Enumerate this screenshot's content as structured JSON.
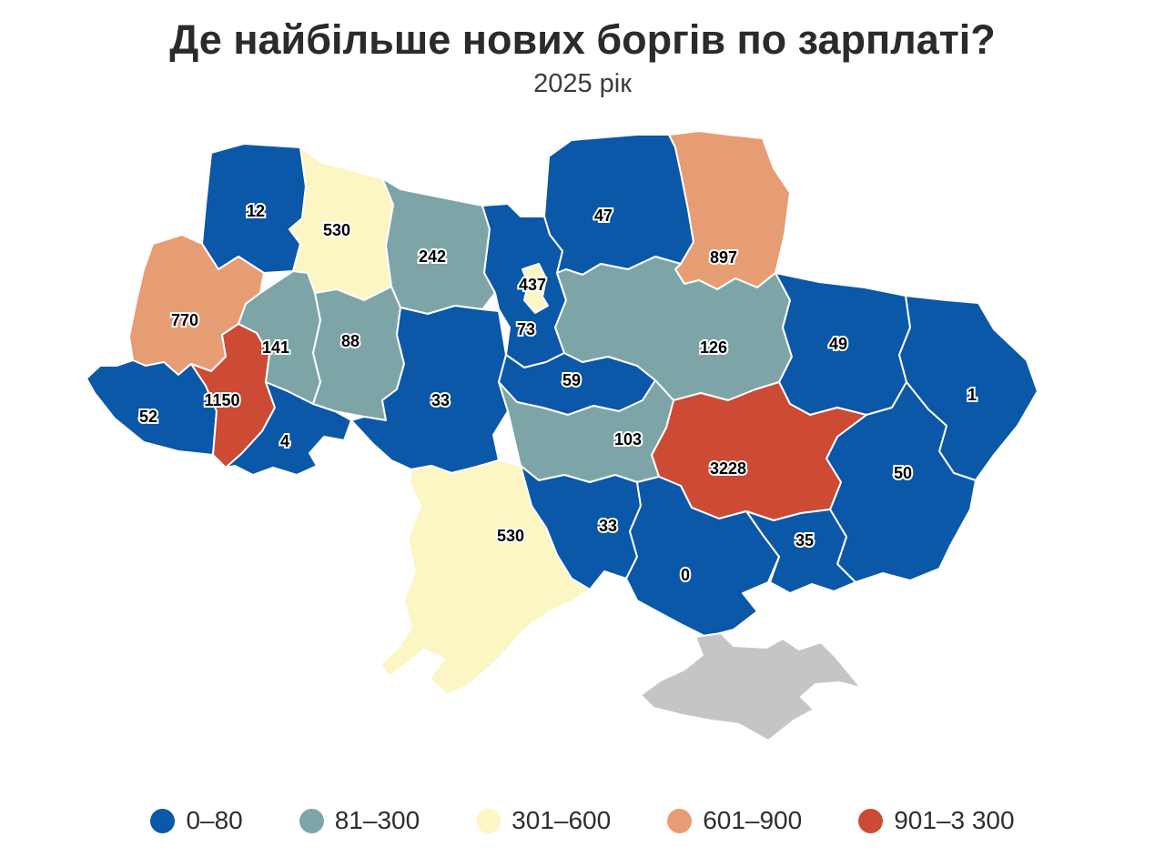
{
  "title": "Де найбільше нових боргів по зарплаті?",
  "subtitle": "2025 рік",
  "legend": [
    {
      "label": "0–80",
      "color": "#0b57a8"
    },
    {
      "label": "81–300",
      "color": "#7da5a8"
    },
    {
      "label": "301–600",
      "color": "#fbf6c3"
    },
    {
      "label": "601–900",
      "color": "#e79d74"
    },
    {
      "label": "901–3 300",
      "color": "#cd4a35"
    }
  ],
  "no_data_color": "#c5c5c5",
  "chart_data": {
    "type": "choropleth",
    "title": "Де найбільше нових боргів по зарплаті?",
    "subtitle": "2025 рік",
    "legend_position": "bottom",
    "buckets": [
      "0–80",
      "81–300",
      "301–600",
      "601–900",
      "901–3 300"
    ],
    "regions": [
      {
        "id": "volyn",
        "label": "12",
        "value": 12,
        "bucket": 0
      },
      {
        "id": "rivne",
        "label": "530",
        "value": 530,
        "bucket": 2
      },
      {
        "id": "zhytomyr",
        "label": "242",
        "value": 242,
        "bucket": 1
      },
      {
        "id": "chernihiv",
        "label": "47",
        "value": 47,
        "bucket": 0
      },
      {
        "id": "sumy",
        "label": "897",
        "value": 897,
        "bucket": 3
      },
      {
        "id": "kyiv-oblast",
        "label": "73",
        "value": 73,
        "bucket": 0
      },
      {
        "id": "kyiv-city",
        "label": "437",
        "value": 437,
        "bucket": 2
      },
      {
        "id": "lviv",
        "label": "770",
        "value": 770,
        "bucket": 3
      },
      {
        "id": "zakarpattia",
        "label": "52",
        "value": 52,
        "bucket": 0
      },
      {
        "id": "ivano-frankivsk",
        "label": "1150",
        "value": 1150,
        "bucket": 4
      },
      {
        "id": "ternopil",
        "label": "141",
        "value": 141,
        "bucket": 1
      },
      {
        "id": "chernivtsi",
        "label": "4",
        "value": 4,
        "bucket": 0
      },
      {
        "id": "khmelnytskyi",
        "label": "88",
        "value": 88,
        "bucket": 1
      },
      {
        "id": "vinnytsia",
        "label": "33",
        "value": 33,
        "bucket": 0
      },
      {
        "id": "cherkasy",
        "label": "59",
        "value": 59,
        "bucket": 0
      },
      {
        "id": "poltava",
        "label": "126",
        "value": 126,
        "bucket": 1
      },
      {
        "id": "kharkiv",
        "label": "49",
        "value": 49,
        "bucket": 0
      },
      {
        "id": "luhansk",
        "label": "1",
        "value": 1,
        "bucket": 0
      },
      {
        "id": "donetsk",
        "label": "50",
        "value": 50,
        "bucket": 0
      },
      {
        "id": "dnipropetrovsk",
        "label": "3228",
        "value": 3228,
        "bucket": 4
      },
      {
        "id": "zaporizhzhia",
        "label": "35",
        "value": 35,
        "bucket": 0
      },
      {
        "id": "kirovohrad",
        "label": "103",
        "value": 103,
        "bucket": 1
      },
      {
        "id": "mykolaiv",
        "label": "33",
        "value": 33,
        "bucket": 0
      },
      {
        "id": "kherson",
        "label": "0",
        "value": 0,
        "bucket": 0
      },
      {
        "id": "odesa",
        "label": "530",
        "value": 530,
        "bucket": 2
      },
      {
        "id": "crimea",
        "label": "",
        "value": null,
        "bucket": null
      }
    ]
  }
}
